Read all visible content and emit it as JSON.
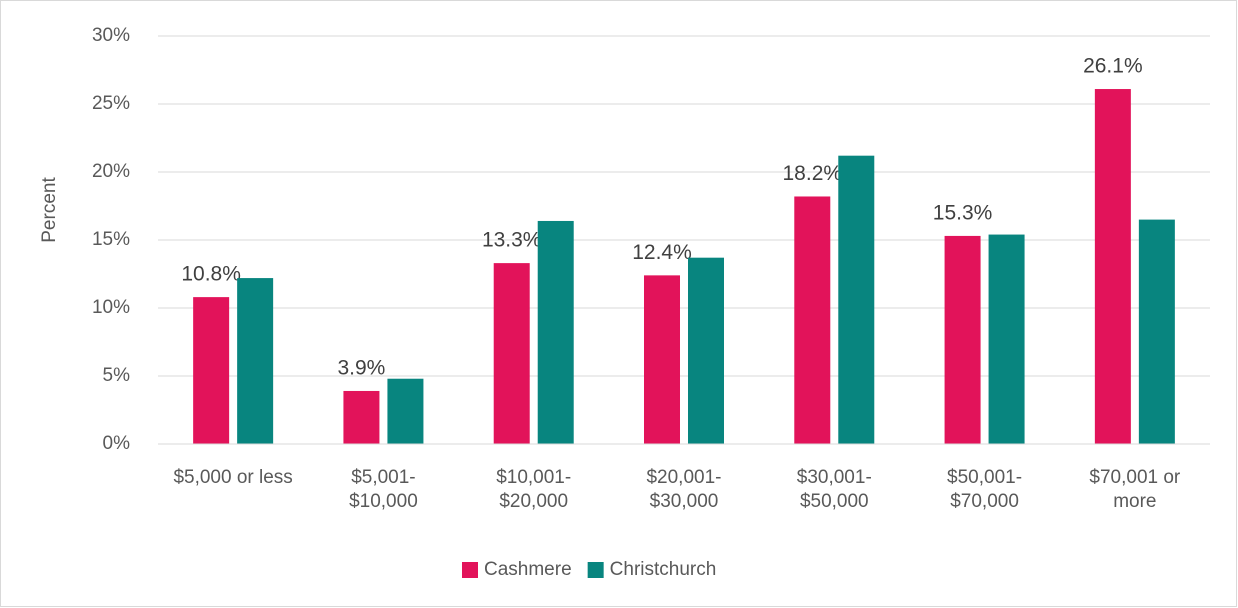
{
  "chart_data": {
    "type": "bar",
    "y_label": "Percent",
    "categories": [
      "$5,000 or less",
      "$5,001-\n$10,000",
      "$10,001-\n$20,000",
      "$20,001-\n$30,000",
      "$30,001-\n$50,000",
      "$50,001-\n$70,000",
      "$70,001 or\nmore"
    ],
    "series": [
      {
        "name": "Cashmere",
        "color": "#e2135a",
        "values": [
          10.8,
          3.9,
          13.3,
          12.4,
          18.2,
          15.3,
          26.1
        ],
        "value_labels": [
          "10.8%",
          "3.9%",
          "13.3%",
          "12.4%",
          "18.2%",
          "15.3%",
          "26.1%"
        ]
      },
      {
        "name": "Christchurch",
        "color": "#08857f",
        "values": [
          12.2,
          4.8,
          16.4,
          13.7,
          21.2,
          15.4,
          16.5
        ]
      }
    ],
    "ylim": [
      0,
      30
    ],
    "yticks": [
      {
        "value": 0,
        "label": "0%"
      },
      {
        "value": 5,
        "label": "5%"
      },
      {
        "value": 10,
        "label": "10%"
      },
      {
        "value": 15,
        "label": "15%"
      },
      {
        "value": 20,
        "label": "20%"
      },
      {
        "value": 25,
        "label": "25%"
      },
      {
        "value": 30,
        "label": "30%"
      }
    ],
    "grid": true,
    "legend": "bottom"
  }
}
